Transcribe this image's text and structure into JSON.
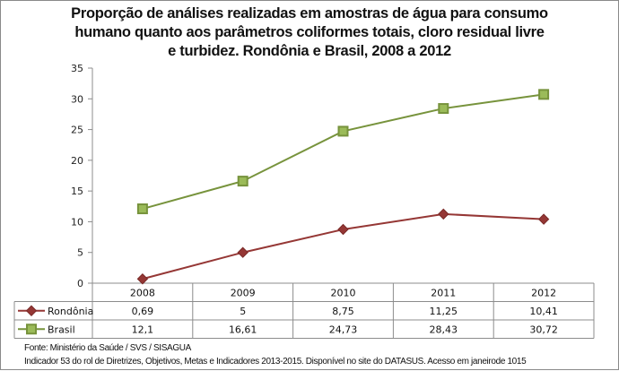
{
  "chart_data": {
    "type": "line",
    "title": "Proporção de análises realizadas em amostras de água para consumo humano quanto aos parâmetros coliformes totais, cloro residual livre e turbidez. Rondônia e Brasil, 2008 a 2012",
    "title_lines": [
      "Proporção de análises realizadas em amostras de água para consumo",
      "humano quanto aos parâmetros coliformes totais, cloro residual livre",
      "e turbidez. Rondônia e Brasil, 2008 a 2012"
    ],
    "categories": [
      "2008",
      "2009",
      "2010",
      "2011",
      "2012"
    ],
    "series": [
      {
        "name": "Rondônia",
        "values": [
          0.69,
          5,
          8.75,
          11.25,
          10.41
        ],
        "labels": [
          "0,69",
          "5",
          "8,75",
          "11,25",
          "10,41"
        ],
        "color": "#953735",
        "marker": "diamond"
      },
      {
        "name": "Brasil",
        "values": [
          12.1,
          16.61,
          24.73,
          28.43,
          30.72
        ],
        "labels": [
          "12,1",
          "16,61",
          "24,73",
          "28,43",
          "30,72"
        ],
        "color": "#77933c",
        "marker": "square",
        "marker_fill": "#9bbb59"
      }
    ],
    "xlabel": "",
    "ylabel": "",
    "ylim": [
      0,
      35
    ],
    "yticks": [
      0,
      5,
      10,
      15,
      20,
      25,
      30,
      35
    ],
    "grid": false,
    "legend": "data-table-left"
  },
  "source_lines": [
    "Fonte: Ministério da Saúde / SVS / SISAGUA",
    "Indicador 53  do rol de Diretrizes, Objetivos, Metas e Indicadores 2013-2015. Disponível no site do DATASUS. Acesso em janeirode 1015"
  ]
}
